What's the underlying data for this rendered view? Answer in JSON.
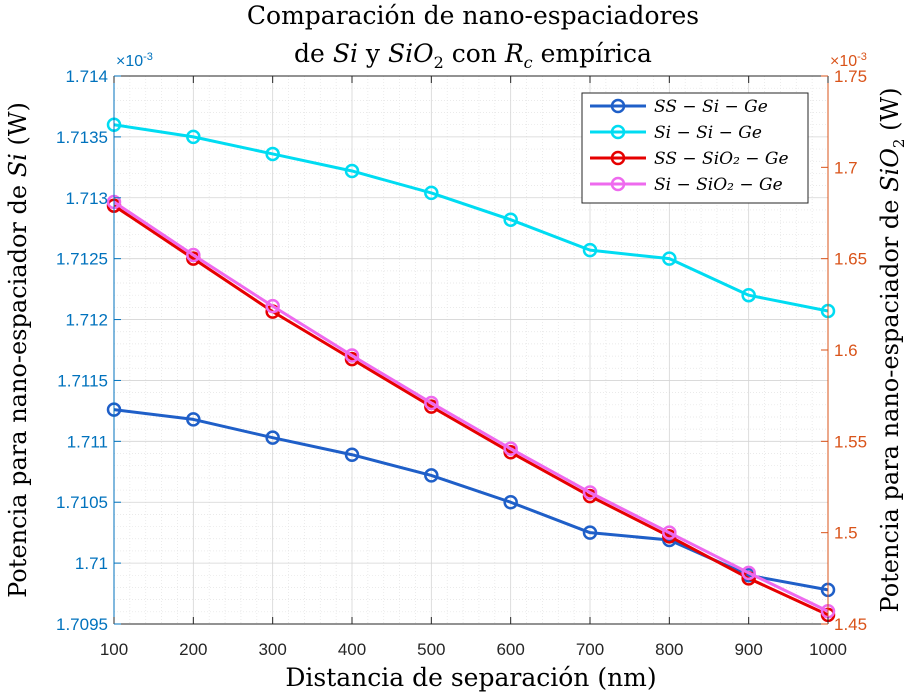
{
  "chart_data": {
    "type": "line",
    "title_line1": "Comparación de nano-espaciadores",
    "title_line2_parts": {
      "de": "de",
      "si": "Si",
      "y": "y",
      "sio2": "SiO",
      "sub2": "2",
      "con": "con",
      "rc": "R",
      "sub_c": "c",
      "tail": "empírica"
    },
    "xlabel": "Distancia de separación (nm)",
    "ylabel_left_prefix": "Potencia para nano-espaciador de",
    "ylabel_left_var": "Si",
    "ylabel_left_unit": "(W)",
    "ylabel_right_prefix": "Potencia para nano-espaciador de",
    "ylabel_right_var": "SiO",
    "ylabel_right_sub": "2",
    "ylabel_right_unit": "(W)",
    "exponent_left": "×10",
    "exponent_left_sup": "-3",
    "exponent_right": "×10",
    "exponent_right_sup": "-3",
    "x": [
      100,
      200,
      300,
      400,
      500,
      600,
      700,
      800,
      900,
      1000
    ],
    "xlim": [
      100,
      1000
    ],
    "x_ticks": [
      "100",
      "200",
      "300",
      "400",
      "500",
      "600",
      "700",
      "800",
      "900",
      "1000"
    ],
    "ylim_left": [
      1.7095,
      1.714
    ],
    "ylim_right": [
      1.45,
      1.75
    ],
    "y_ticks_left": [
      "1.7095",
      "1.71",
      "1.7105",
      "1.711",
      "1.7115",
      "1.712",
      "1.7125",
      "1.713",
      "1.7135",
      "1.714"
    ],
    "y_ticks_right": [
      "1.45",
      "1.5",
      "1.55",
      "1.6",
      "1.65",
      "1.7",
      "1.75"
    ],
    "grid": true,
    "legend_position": "top-right",
    "colors": {
      "left_axis": "#0072bd",
      "right_axis": "#d95319",
      "axis_box": "#262626"
    },
    "series": [
      {
        "name": "SS − Si − Ge",
        "axis": "left",
        "color": "#1f5fc8",
        "values": [
          1.71126,
          1.71118,
          1.71103,
          1.71089,
          1.71072,
          1.7105,
          1.71025,
          1.71019,
          1.7099,
          1.70978
        ]
      },
      {
        "name": "Si − Si − Ge",
        "axis": "left",
        "color": "#00dcf2",
        "values": [
          1.7136,
          1.7135,
          1.71336,
          1.71322,
          1.71304,
          1.71282,
          1.71257,
          1.7125,
          1.7122,
          1.71207
        ]
      },
      {
        "name": "SS − SiO₂ − Ge",
        "axis": "right",
        "color": "#e60000",
        "values": [
          1.679,
          1.65,
          1.621,
          1.595,
          1.569,
          1.544,
          1.52,
          1.498,
          1.475,
          1.455
        ]
      },
      {
        "name": "Si − SiO₂ − Ge",
        "axis": "right",
        "color": "#ee6aee",
        "values": [
          1.681,
          1.652,
          1.624,
          1.597,
          1.571,
          1.546,
          1.522,
          1.5,
          1.478,
          1.457
        ]
      }
    ]
  }
}
